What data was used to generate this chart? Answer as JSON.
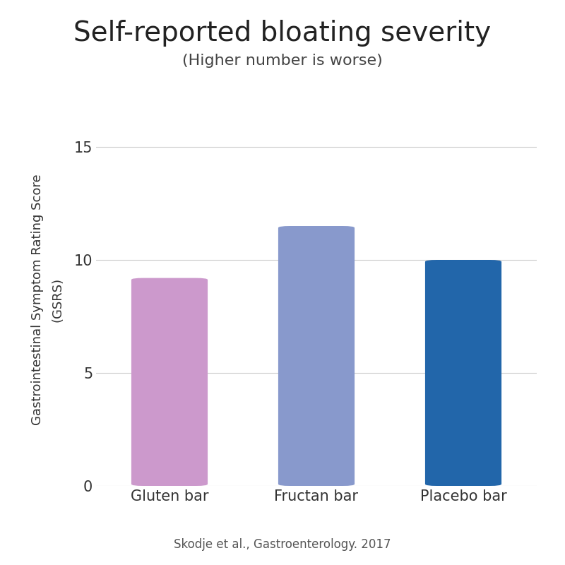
{
  "title": "Self-reported bloating severity",
  "subtitle": "(Higher number is worse)",
  "categories": [
    "Gluten bar",
    "Fructan bar",
    "Placebo bar"
  ],
  "values": [
    9.2,
    11.5,
    10.0
  ],
  "bar_colors": [
    "#cc99cc",
    "#8899cc",
    "#2266aa"
  ],
  "ylabel_line1": "Gastrointestinal Symptom Rating Score",
  "ylabel_line2": "(GSRS)",
  "ylim": [
    0,
    16.5
  ],
  "yticks": [
    0,
    5,
    10,
    15
  ],
  "citation": "Skodje et al., Gastroenterology. 2017",
  "background_color": "#ffffff",
  "title_fontsize": 28,
  "subtitle_fontsize": 16,
  "tick_fontsize": 15,
  "ylabel_fontsize": 13,
  "citation_fontsize": 12,
  "bar_width": 0.52
}
